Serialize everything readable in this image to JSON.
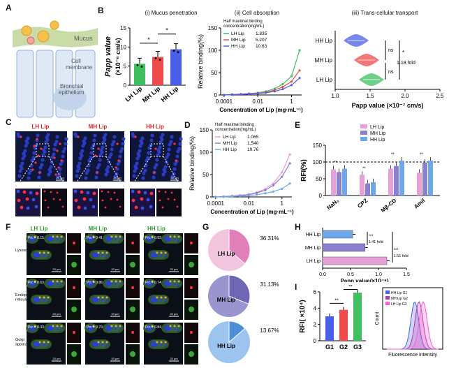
{
  "panels": {
    "A": "A",
    "B": "B",
    "C": "C",
    "D": "D",
    "E": "E",
    "F": "F",
    "G": "G",
    "H": "H",
    "I": "I"
  },
  "colors": {
    "lh": "#3fbf5f",
    "mh": "#f04a4a",
    "hh": "#4a5fe8",
    "pink": "#e8a0d8",
    "purple": "#8a7fd0",
    "blue": "#6fa8e8"
  },
  "panelA": {
    "mucus": "Mucus",
    "cell_membrane": "Cell\nmembrane",
    "bronchial": "Bronchial\nepithelium"
  },
  "panelB": {
    "titles": [
      "(i) Mucus penetration",
      "(ii) Cell absorption",
      "(iii) Trans-cellular transport"
    ],
    "papp_ylabel": "Papp value",
    "papp_yunit": "(×10⁻⁶ cm/s)",
    "bar_x": [
      "LH Lip",
      "MH Lip",
      "HH Lip"
    ],
    "yticks": [
      "0",
      "5",
      "10",
      "15"
    ],
    "sig": [
      "*",
      "*"
    ],
    "absorb_legend_title": "Half maximal binding\nconcentration(mg/mL)",
    "absorb_legend": [
      {
        "name": "LH Lip",
        "val": "1.835"
      },
      {
        "name": "MH Lip",
        "val": "5.207"
      },
      {
        "name": "HH Lip",
        "val": "10.63"
      }
    ],
    "absorb_ylabel": "Relative binding(%)",
    "absorb_xlabel": "Concentration of Lip (mg·mL⁻¹)",
    "absorb_yticks": [
      "0",
      "50",
      "100",
      "150"
    ],
    "absorb_xticks": [
      "0.0001",
      "0.01",
      "1"
    ],
    "trans_rows": [
      "HH Lip",
      "MH Lip",
      "LH Lip"
    ],
    "trans_ns": [
      "ns",
      "ns"
    ],
    "trans_star": "*",
    "trans_fold": "1.18 fold",
    "trans_xticks": [
      "1.0",
      "1.5",
      "2.0",
      "2.5"
    ],
    "trans_xlabel": "Papp value (×10⁻⁷ cm/s)"
  },
  "panelC": {
    "cols": [
      "LH Lip",
      "MH Lip",
      "HH Lip"
    ],
    "scale": "20 μm"
  },
  "panelD": {
    "legend_title": "Half maximal binding\nconcentration(mg/mL)",
    "legend": [
      {
        "name": "LH Lip",
        "val": "1.065"
      },
      {
        "name": "MH Lip",
        "val": "1.540"
      },
      {
        "name": "HH Lip",
        "val": "19.76"
      }
    ],
    "ylabel": "Relative binding(%)",
    "xlabel": "Concentration of Lip (mg·mL⁻¹)",
    "yticks": [
      "0",
      "50",
      "100",
      "150"
    ],
    "xticks": [
      "0.0001",
      "0.01",
      "1"
    ]
  },
  "panelE": {
    "legend": [
      "LH Lip",
      "MH Lip",
      "HH Lip"
    ],
    "ylabel": "RFI(%)",
    "yticks": [
      "0",
      "50",
      "100",
      "150"
    ],
    "groups": [
      "NaN₃",
      "CPZ",
      "Mβ-CD",
      "Amil"
    ]
  },
  "panelF": {
    "cols": [
      "LH Lip",
      "MH Lip",
      "HH Lip"
    ],
    "rows": [
      "Lysosome",
      "Endoplasmic\nreticulum",
      "Golgi\napparatus"
    ],
    "prc": [
      [
        "Prc = 0.15",
        "Prc = 0.41",
        "Prc = 0.63"
      ],
      [
        "Prc = 0.63",
        "Prc = 0.86",
        "Prc = 0.74"
      ],
      [
        "Prc = 0.33",
        "Prc = 0.79",
        "Prc = 0.84"
      ]
    ],
    "scale": "20 μm"
  },
  "panelG": {
    "pies": [
      {
        "label": "LH Lip",
        "pct": "36.31%",
        "value": 36.31
      },
      {
        "label": "MH Lip",
        "pct": "31.13%",
        "value": 31.13
      },
      {
        "label": "HH Lip",
        "pct": "13.67%",
        "value": 13.67
      }
    ]
  },
  "panelH": {
    "rows": [
      "HH Lip",
      "MH Lip",
      "LH Lip"
    ],
    "xticks": [
      "0.0",
      "0.5",
      "1.0",
      "1.5"
    ],
    "xlabel": "Papp value(×10⁻⁶)",
    "sig": [
      "***",
      "***"
    ],
    "folds": [
      "1.41 fold",
      "1.51 fold"
    ]
  },
  "panelI": {
    "ylabel": "RFI( ×10⁴)",
    "yticks": [
      "0",
      "2",
      "4",
      "6"
    ],
    "groups": [
      "G1",
      "G2",
      "G3"
    ],
    "sig": [
      "**",
      "**"
    ],
    "flow_legend": [
      "HH Lip  G1",
      "MH Lip  G2",
      "LH Lip  G3"
    ],
    "flow_ylabel": "Count",
    "flow_xlabel": "Fluorescence intensity"
  },
  "chart_data": [
    {
      "type": "bar",
      "title": "(i) Mucus penetration",
      "categories": [
        "LH Lip",
        "MH Lip",
        "HH Lip"
      ],
      "values": [
        5.6,
        7.4,
        9.4
      ],
      "ylabel": "Papp value (×10⁻⁶ cm/s)",
      "ylim": [
        0,
        15
      ]
    },
    {
      "type": "line",
      "title": "(ii) Cell absorption",
      "xlabel": "Concentration of Lip (mg·mL⁻¹)",
      "ylabel": "Relative binding(%)",
      "ylim": [
        0,
        150
      ],
      "log_x": true,
      "series": [
        {
          "name": "LH Lip",
          "x": [
            0.0001,
            0.0003,
            0.001,
            0.003,
            0.01,
            0.03,
            0.1,
            0.3,
            1,
            3
          ],
          "values": [
            0,
            1,
            2,
            3,
            5,
            8,
            14,
            24,
            42,
            100
          ]
        },
        {
          "name": "MH Lip",
          "x": [
            0.0001,
            0.0003,
            0.001,
            0.003,
            0.01,
            0.03,
            0.1,
            0.3,
            1,
            3
          ],
          "values": [
            0,
            1,
            2,
            3,
            4,
            6,
            11,
            18,
            30,
            55
          ]
        },
        {
          "name": "HH Lip",
          "x": [
            0.0001,
            0.0003,
            0.001,
            0.003,
            0.01,
            0.03,
            0.1,
            0.3,
            1,
            3
          ],
          "values": [
            0,
            1,
            1,
            2,
            3,
            5,
            8,
            13,
            22,
            38
          ]
        }
      ]
    },
    {
      "type": "scatter",
      "title": "(iii) Trans-cellular transport",
      "categories": [
        "HH Lip",
        "MH Lip",
        "LH Lip"
      ],
      "values": [
        1.3,
        1.45,
        1.52
      ],
      "xlabel": "Papp value (×10⁻⁷ cm/s)",
      "xlim": [
        1.0,
        2.5
      ]
    },
    {
      "type": "line",
      "xlabel": "Concentration of Lip (mg·mL⁻¹)",
      "ylabel": "Relative binding(%)",
      "ylim": [
        0,
        150
      ],
      "log_x": true,
      "series": [
        {
          "name": "LH Lip",
          "x": [
            0.0001,
            0.0003,
            0.001,
            0.003,
            0.01,
            0.03,
            0.1,
            0.3,
            1,
            3
          ],
          "values": [
            0,
            1,
            2,
            4,
            6,
            10,
            18,
            30,
            55,
            95
          ]
        },
        {
          "name": "MH Lip",
          "x": [
            0.0001,
            0.0003,
            0.001,
            0.003,
            0.01,
            0.03,
            0.1,
            0.3,
            1,
            3
          ],
          "values": [
            0,
            1,
            2,
            3,
            5,
            9,
            15,
            26,
            45,
            75
          ]
        },
        {
          "name": "HH Lip",
          "x": [
            0.0001,
            0.0003,
            0.001,
            0.003,
            0.01,
            0.03,
            0.1,
            0.3,
            1,
            3
          ],
          "values": [
            0,
            0,
            1,
            2,
            3,
            5,
            8,
            12,
            18,
            30
          ]
        }
      ]
    },
    {
      "type": "bar",
      "categories": [
        "NaN₃",
        "CPZ",
        "Mβ-CD",
        "Amil"
      ],
      "ylabel": "RFI(%)",
      "ylim": [
        0,
        150
      ],
      "series": [
        {
          "name": "LH Lip",
          "values": [
            78,
            62,
            80,
            68
          ]
        },
        {
          "name": "MH Lip",
          "values": [
            70,
            36,
            88,
            98
          ]
        },
        {
          "name": "HH Lip",
          "values": [
            80,
            40,
            104,
            104
          ]
        }
      ]
    },
    {
      "type": "pie",
      "values": [
        36.31,
        31.13,
        13.67
      ],
      "labels": [
        "LH Lip",
        "MH Lip",
        "HH Lip"
      ]
    },
    {
      "type": "bar",
      "categories": [
        "HH Lip",
        "MH Lip",
        "LH Lip"
      ],
      "values": [
        0.54,
        0.76,
        1.15
      ],
      "xlabel": "Papp value(×10⁻⁶)",
      "xlim": [
        0,
        1.5
      ]
    },
    {
      "type": "bar",
      "categories": [
        "G1",
        "G2",
        "G3"
      ],
      "values": [
        3.0,
        3.8,
        5.9
      ],
      "ylabel": "RFI( ×10⁴)",
      "ylim": [
        0,
        6
      ]
    }
  ]
}
